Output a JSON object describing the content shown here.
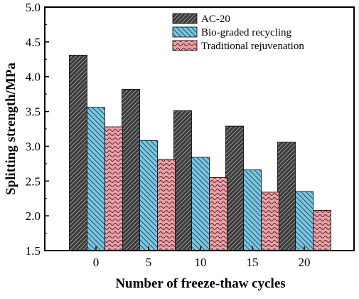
{
  "chart_data": {
    "type": "bar",
    "xlabel": "Number of freeze-thaw cycles",
    "ylabel": "Splitting strength/MPa",
    "categories": [
      "0",
      "5",
      "10",
      "15",
      "20"
    ],
    "ylim": [
      1.5,
      5.0
    ],
    "yticks": [
      "1.5",
      "2.0",
      "2.5",
      "3.0",
      "3.5",
      "4.0",
      "4.5",
      "5.0"
    ],
    "legend_position": "top-right",
    "grid": false,
    "series": [
      {
        "name": "AC-20",
        "values": [
          4.31,
          3.82,
          3.51,
          3.29,
          3.06
        ],
        "color": "#3a3a3a",
        "pattern": "dense-diagonal"
      },
      {
        "name": "Bio-graded recycling",
        "values": [
          3.56,
          3.08,
          2.84,
          2.66,
          2.35
        ],
        "color": "#7cc6e0",
        "pattern": "back-diagonal"
      },
      {
        "name": "Traditional rejuvenation",
        "values": [
          3.28,
          2.81,
          2.55,
          2.34,
          2.08
        ],
        "color": "#e8a2a8",
        "pattern": "wave"
      }
    ]
  }
}
